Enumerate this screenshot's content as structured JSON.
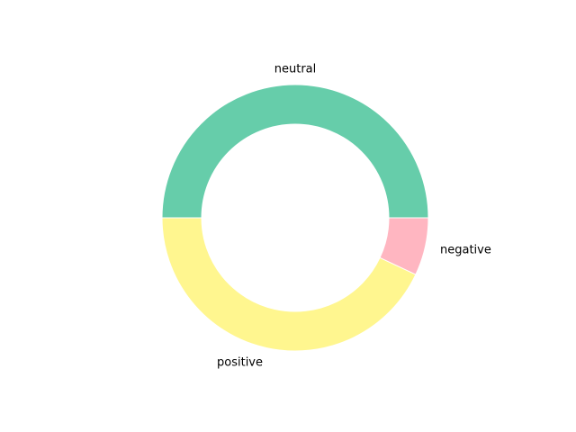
{
  "chart_data": {
    "type": "pie",
    "style": "donut",
    "title": "",
    "slices": [
      {
        "label": "neutral",
        "value": 50.0,
        "color": "#66cdaa"
      },
      {
        "label": "positive",
        "value": 43.0,
        "color": "#fff68f"
      },
      {
        "label": "negative",
        "value": 7.0,
        "color": "#ffb6c1"
      }
    ],
    "start_angle_deg": 0,
    "direction": "counterclockwise",
    "legend": "none"
  }
}
